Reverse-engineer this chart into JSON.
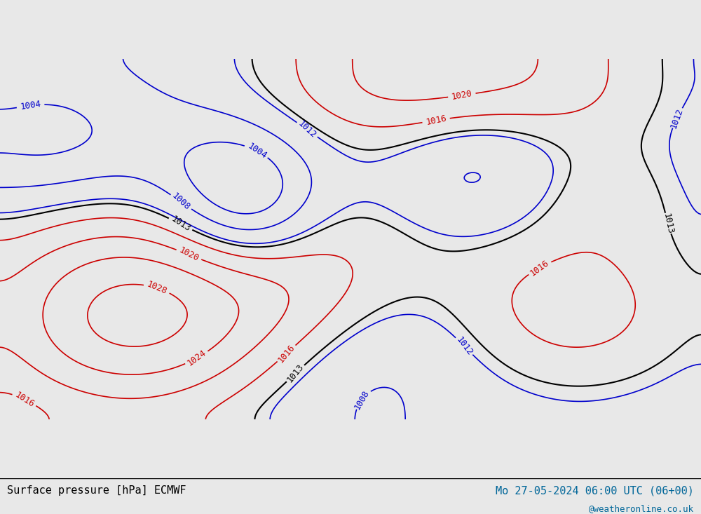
{
  "title_left": "Surface pressure [hPa] ECMWF",
  "title_right": "Mo 27-05-2024 06:00 UTC (06+00)",
  "watermark": "@weatheronline.co.uk",
  "bg_color": "#e8e8e8",
  "land_color": "#c8e6c8",
  "ocean_color": "#e8e8e8",
  "contour_color_low": "#0000cc",
  "contour_color_high": "#cc0000",
  "contour_color_mid": "#000000",
  "label_fontsize": 9,
  "footer_fontsize": 11
}
